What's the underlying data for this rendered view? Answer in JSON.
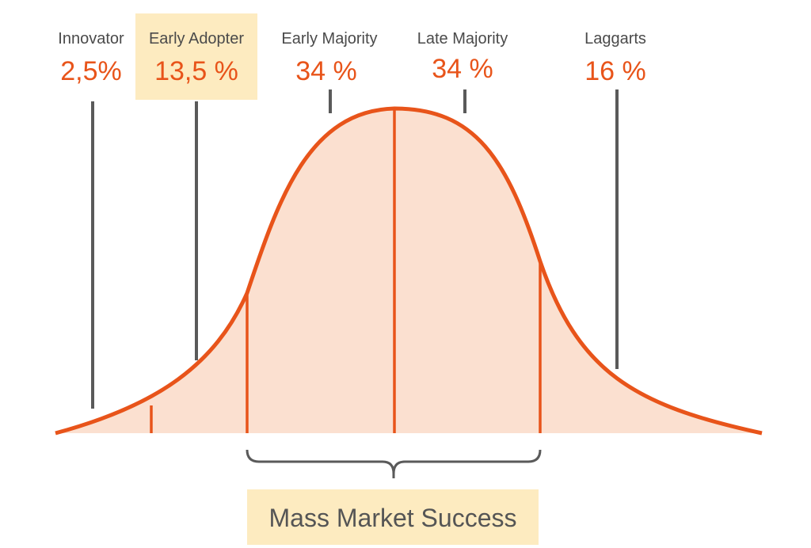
{
  "segments": [
    {
      "label": "Innovator",
      "share": "2,5%"
    },
    {
      "label": "Early Adopter",
      "share": "13,5 %"
    },
    {
      "label": "Early Majority",
      "share": "34 %"
    },
    {
      "label": "Late Majority",
      "share": "34 %"
    },
    {
      "label": "Laggarts",
      "share": "16 %"
    }
  ],
  "footer": {
    "label": "Mass Market Success"
  }
}
